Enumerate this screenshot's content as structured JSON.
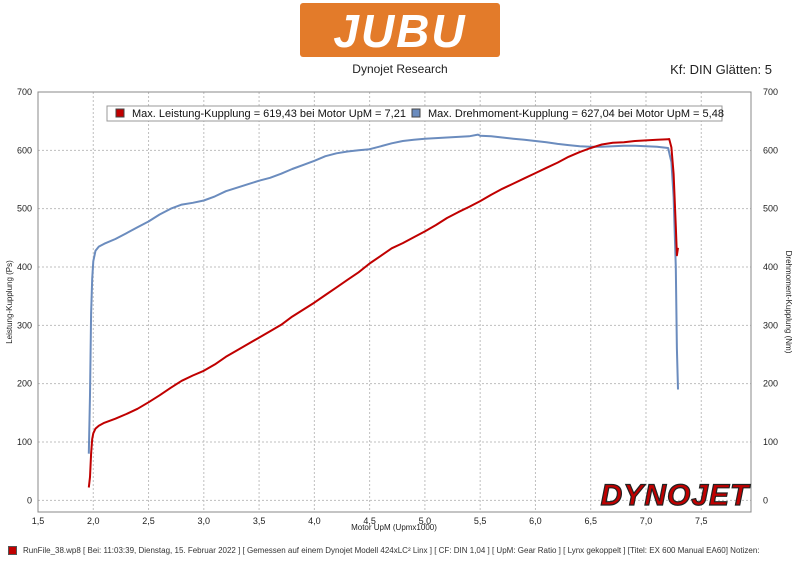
{
  "header": {
    "brand": "JUBU",
    "subtitle": "Dynojet Research",
    "settings": "Kf: DIN Glätten: 5"
  },
  "watermark": "DYNOJET",
  "footer": {
    "text": "RunFile_38.wp8 [ Bei: 11:03:39, Dienstag, 15. Februar 2022 ] [ Gemessen auf einem Dynojet Modell 424xLC² Linx ] [ CF: DIN 1,04 ] [ UpM: Gear Ratio ] [ Lynx gekoppelt ] [Titel: EX 600 Manual EA60]  Notizen:"
  },
  "colors": {
    "power": "#c00000",
    "torque": "#6b8cbe",
    "brand": "#e37b2a"
  },
  "chart_data": {
    "type": "line",
    "xlabel": "Motor UpM (Upmx1000)",
    "ylabel_left": "Leistung-Kupplung (Ps)",
    "ylabel_right": "Drehmoment-Kupplung (Nm)",
    "xlim": [
      1.5,
      7.95
    ],
    "ylim_left": [
      -20,
      700
    ],
    "ylim_right": [
      -20,
      700
    ],
    "x_ticks": [
      "1,5",
      "2,0",
      "2,5",
      "3,0",
      "3,5",
      "4,0",
      "4,5",
      "5,0",
      "5,5",
      "6,0",
      "6,5",
      "7,0",
      "7,5"
    ],
    "y_ticks": [
      "0",
      "100",
      "200",
      "300",
      "400",
      "500",
      "600",
      "700"
    ],
    "grid": true,
    "legend": [
      "Max. Leistung-Kupplung = 619,43 bei Motor UpM = 7,21",
      "Max. Drehmoment-Kupplung = 627,04 bei Motor UpM = 5,48"
    ],
    "series": [
      {
        "axis": "left",
        "x": [
          1.96,
          1.97,
          1.98,
          1.99,
          2.0,
          2.02,
          2.05,
          2.1,
          2.2,
          2.3,
          2.4,
          2.5,
          2.6,
          2.7,
          2.8,
          2.9,
          3.0,
          3.1,
          3.2,
          3.3,
          3.4,
          3.5,
          3.6,
          3.7,
          3.8,
          3.9,
          4.0,
          4.1,
          4.2,
          4.3,
          4.4,
          4.5,
          4.6,
          4.7,
          4.8,
          4.9,
          5.0,
          5.1,
          5.2,
          5.3,
          5.4,
          5.5,
          5.6,
          5.7,
          5.8,
          5.9,
          6.0,
          6.1,
          6.2,
          6.3,
          6.4,
          6.5,
          6.6,
          6.7,
          6.8,
          6.9,
          7.0,
          7.1,
          7.2,
          7.21,
          7.23,
          7.25,
          7.27,
          7.28,
          7.29
        ],
        "values": [
          22,
          40,
          80,
          105,
          115,
          123,
          128,
          133,
          140,
          148,
          157,
          168,
          180,
          193,
          205,
          214,
          222,
          233,
          246,
          257,
          268,
          279,
          290,
          301,
          315,
          327,
          339,
          352,
          365,
          378,
          391,
          406,
          419,
          432,
          441,
          451,
          461,
          472,
          484,
          494,
          503,
          513,
          524,
          534,
          543,
          552,
          561,
          570,
          579,
          589,
          597,
          604,
          610,
          613,
          614,
          616,
          617,
          618,
          619,
          619.4,
          605,
          560,
          470,
          420,
          433
        ]
      },
      {
        "axis": "right",
        "x": [
          1.96,
          1.97,
          1.98,
          1.99,
          2.0,
          2.02,
          2.05,
          2.1,
          2.2,
          2.3,
          2.4,
          2.5,
          2.6,
          2.7,
          2.8,
          2.9,
          3.0,
          3.1,
          3.2,
          3.3,
          3.4,
          3.5,
          3.6,
          3.7,
          3.8,
          3.9,
          4.0,
          4.1,
          4.2,
          4.3,
          4.4,
          4.5,
          4.6,
          4.7,
          4.8,
          4.9,
          5.0,
          5.1,
          5.2,
          5.3,
          5.4,
          5.48,
          5.5,
          5.6,
          5.7,
          5.8,
          5.9,
          6.0,
          6.1,
          6.2,
          6.3,
          6.4,
          6.5,
          6.6,
          6.7,
          6.8,
          6.9,
          7.0,
          7.1,
          7.2,
          7.23,
          7.25,
          7.27,
          7.28,
          7.29
        ],
        "values": [
          80,
          180,
          320,
          380,
          410,
          428,
          435,
          440,
          448,
          458,
          468,
          478,
          490,
          500,
          507,
          510,
          514,
          521,
          530,
          536,
          542,
          548,
          553,
          560,
          568,
          575,
          582,
          590,
          595,
          598,
          600,
          602,
          607,
          612,
          616,
          618,
          620,
          621,
          622,
          623,
          624,
          627,
          625,
          624,
          622,
          620,
          618,
          616,
          614,
          611,
          609,
          607,
          606,
          606,
          607,
          608,
          608,
          607,
          606,
          604,
          580,
          520,
          400,
          260,
          190
        ]
      }
    ]
  }
}
